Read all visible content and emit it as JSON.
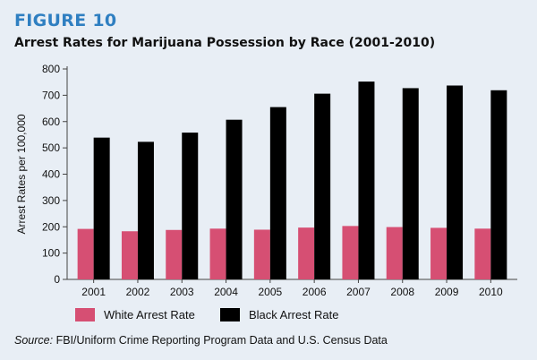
{
  "figure_label": "FIGURE 10",
  "source_label": "Source:",
  "source_text": "FBI/Uniform Crime Reporting Program Data and U.S. Census Data",
  "colors": {
    "white": "#d64f73",
    "black": "#000000",
    "axis": "#444444",
    "background": "#e8eef5"
  },
  "chart_data": {
    "type": "bar",
    "title": "Arrest Rates for Marijuana Possession by Race (2001-2010)",
    "xlabel": "",
    "ylabel": "Arrest Rates per 100,000",
    "ylim": [
      0,
      800
    ],
    "yticks": [
      0,
      100,
      200,
      300,
      400,
      500,
      600,
      700,
      800
    ],
    "categories": [
      "2001",
      "2002",
      "2003",
      "2004",
      "2005",
      "2006",
      "2007",
      "2008",
      "2009",
      "2010"
    ],
    "series": [
      {
        "name": "White Arrest Rate",
        "values": [
          192,
          183,
          188,
          193,
          189,
          197,
          203,
          199,
          196,
          193
        ]
      },
      {
        "name": "Black Arrest Rate",
        "values": [
          539,
          523,
          558,
          607,
          655,
          706,
          752,
          727,
          737,
          719
        ]
      }
    ],
    "legend_position": "bottom"
  }
}
